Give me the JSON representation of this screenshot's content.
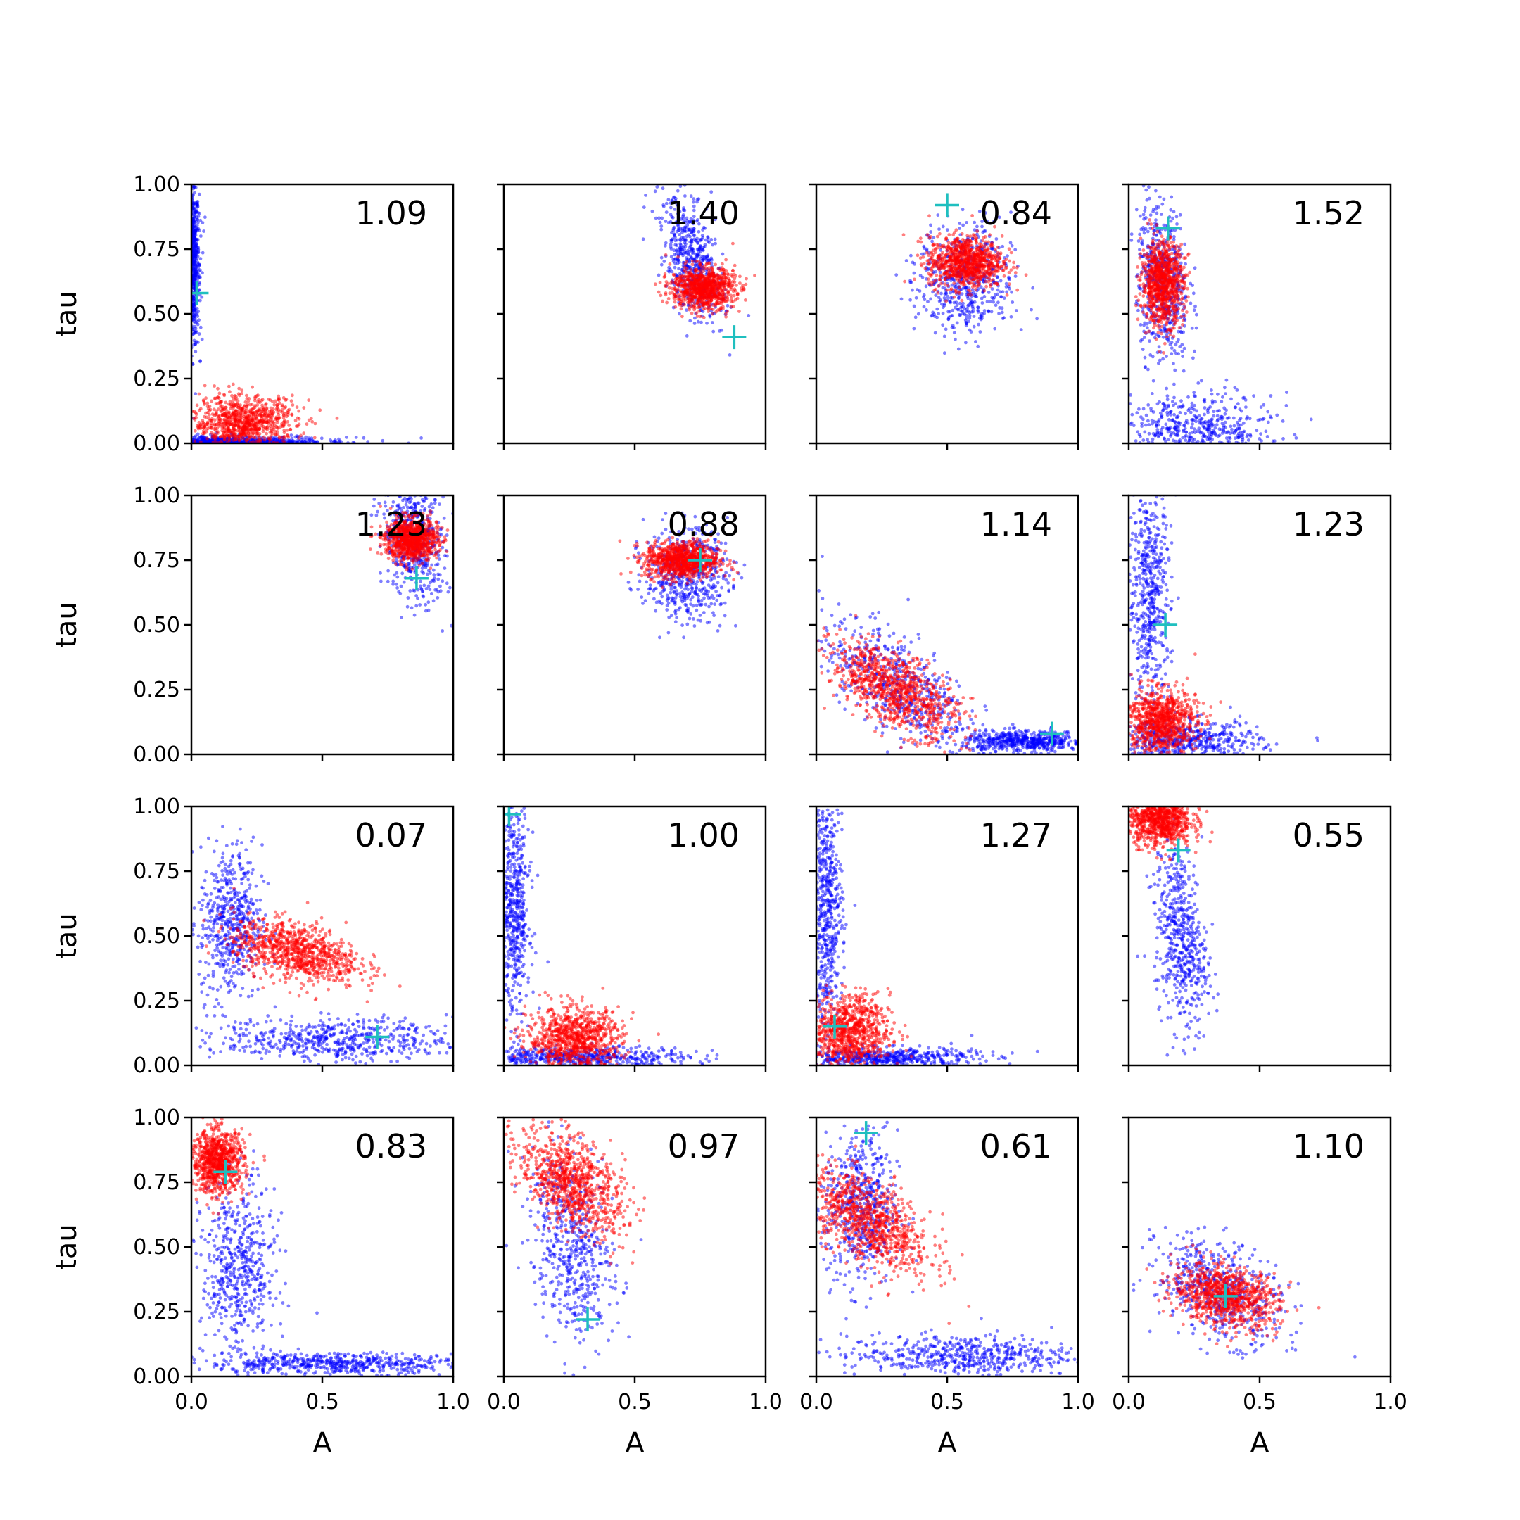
{
  "figure": {
    "rows": 4,
    "cols": 4,
    "background": "#ffffff",
    "colors": {
      "blue_points": "#0000ff",
      "red_points": "#ff0000",
      "marker": "#1fbfbf",
      "axes": "#000000"
    }
  },
  "chart_data": {
    "type": "scatter",
    "layout": "4x4 grid of scatter panels, shared x and y axes",
    "xlabel": "A",
    "ylabel": "tau",
    "xlim": [
      0,
      1
    ],
    "ylim": [
      0,
      1
    ],
    "xticks": [
      "0.0",
      "0.5",
      "1.0"
    ],
    "yticks": [
      "0.00",
      "0.25",
      "0.50",
      "0.75",
      "1.00"
    ],
    "grid": false,
    "series_styles": [
      {
        "key": "blue",
        "color": "#0000ff",
        "marker": "dot"
      },
      {
        "key": "red",
        "color": "#ff0000",
        "marker": "dot"
      },
      {
        "key": "cross",
        "color": "#1fbfbf",
        "marker": "plus"
      }
    ],
    "panels": [
      {
        "row": 1,
        "col": 1,
        "value": "1.09",
        "blue": [
          [
            0.03,
            0.7,
            0.015,
            0.15,
            "gamma"
          ],
          [
            0.18,
            0.02,
            0.22,
            0.012,
            "exp"
          ]
        ],
        "red": [
          [
            0.2,
            0.08,
            0.1,
            0.05,
            0
          ]
        ],
        "marker": [
          0.02,
          0.58
        ]
      },
      {
        "row": 1,
        "col": 2,
        "value": "1.40",
        "blue": [
          [
            0.72,
            0.7,
            0.06,
            0.12,
            -0.5
          ]
        ],
        "red": [
          [
            0.76,
            0.6,
            0.06,
            0.04,
            0
          ]
        ],
        "marker": [
          0.88,
          0.41
        ]
      },
      {
        "row": 1,
        "col": 3,
        "value": "0.84",
        "blue": [
          [
            0.57,
            0.63,
            0.09,
            0.11,
            0
          ]
        ],
        "red": [
          [
            0.57,
            0.7,
            0.07,
            0.05,
            0
          ]
        ],
        "marker": [
          0.5,
          0.92
        ]
      },
      {
        "row": 1,
        "col": 4,
        "value": "1.52",
        "blue": [
          [
            0.13,
            0.62,
            0.05,
            0.16,
            -0.2
          ],
          [
            0.25,
            0.05,
            0.15,
            0.07,
            0
          ]
        ],
        "red": [
          [
            0.13,
            0.62,
            0.04,
            0.08,
            0
          ]
        ],
        "marker": [
          0.15,
          0.83
        ]
      },
      {
        "row": 2,
        "col": 1,
        "value": "1.23",
        "blue": [
          [
            0.85,
            0.82,
            0.06,
            0.12,
            -0.3
          ]
        ],
        "red": [
          [
            0.84,
            0.83,
            0.05,
            0.04,
            0
          ]
        ],
        "marker": [
          0.86,
          0.68
        ]
      },
      {
        "row": 2,
        "col": 2,
        "value": "0.88",
        "blue": [
          [
            0.7,
            0.7,
            0.08,
            0.09,
            0
          ]
        ],
        "red": [
          [
            0.68,
            0.75,
            0.07,
            0.035,
            0
          ]
        ],
        "marker": [
          0.75,
          0.75
        ]
      },
      {
        "row": 2,
        "col": 3,
        "value": "1.14",
        "blue": [
          [
            0.3,
            0.28,
            0.14,
            0.12,
            -0.6
          ],
          [
            0.8,
            0.05,
            0.12,
            0.02,
            0
          ]
        ],
        "red": [
          [
            0.3,
            0.25,
            0.12,
            0.09,
            -0.6
          ]
        ],
        "marker": [
          0.9,
          0.08
        ]
      },
      {
        "row": 2,
        "col": 4,
        "value": "1.23",
        "blue": [
          [
            0.08,
            0.62,
            0.04,
            0.22,
            0
          ],
          [
            0.22,
            0.05,
            0.14,
            0.04,
            0
          ]
        ],
        "red": [
          [
            0.12,
            0.13,
            0.07,
            0.06,
            0
          ]
        ],
        "marker": [
          0.14,
          0.5
        ]
      },
      {
        "row": 3,
        "col": 1,
        "value": "0.07",
        "blue": [
          [
            0.55,
            0.1,
            0.22,
            0.04,
            0
          ],
          [
            0.15,
            0.55,
            0.06,
            0.15,
            0
          ]
        ],
        "red": [
          [
            0.4,
            0.44,
            0.12,
            0.06,
            -0.4
          ]
        ],
        "marker": [
          0.71,
          0.11
        ]
      },
      {
        "row": 3,
        "col": 2,
        "value": "1.00",
        "blue": [
          [
            0.04,
            0.6,
            0.03,
            0.22,
            0
          ],
          [
            0.3,
            0.03,
            0.2,
            0.02,
            0
          ]
        ],
        "red": [
          [
            0.27,
            0.1,
            0.09,
            0.06,
            0
          ]
        ],
        "marker": [
          0.02,
          0.97
        ]
      },
      {
        "row": 3,
        "col": 3,
        "value": "1.27",
        "blue": [
          [
            0.04,
            0.6,
            0.03,
            0.22,
            0
          ],
          [
            0.25,
            0.03,
            0.18,
            0.02,
            0
          ]
        ],
        "red": [
          [
            0.12,
            0.13,
            0.08,
            0.07,
            0
          ]
        ],
        "marker": [
          0.07,
          0.15
        ]
      },
      {
        "row": 3,
        "col": 4,
        "value": "0.55",
        "blue": [
          [
            0.2,
            0.5,
            0.05,
            0.18,
            -0.3
          ]
        ],
        "red": [
          [
            0.12,
            0.95,
            0.06,
            0.05,
            0
          ]
        ],
        "marker": [
          0.19,
          0.83
        ]
      },
      {
        "row": 4,
        "col": 1,
        "value": "0.83",
        "blue": [
          [
            0.18,
            0.4,
            0.07,
            0.17,
            0
          ],
          [
            0.55,
            0.05,
            0.25,
            0.02,
            0
          ]
        ],
        "red": [
          [
            0.1,
            0.83,
            0.05,
            0.06,
            0
          ]
        ],
        "marker": [
          0.13,
          0.79
        ]
      },
      {
        "row": 4,
        "col": 2,
        "value": "0.97",
        "blue": [
          [
            0.26,
            0.5,
            0.08,
            0.18,
            -0.3
          ]
        ],
        "red": [
          [
            0.26,
            0.75,
            0.1,
            0.1,
            -0.5
          ]
        ],
        "marker": [
          0.32,
          0.22
        ]
      },
      {
        "row": 4,
        "col": 3,
        "value": "0.61",
        "blue": [
          [
            0.17,
            0.65,
            0.07,
            0.15,
            0
          ],
          [
            0.55,
            0.08,
            0.22,
            0.04,
            0
          ]
        ],
        "red": [
          [
            0.2,
            0.6,
            0.12,
            0.1,
            -0.6
          ]
        ],
        "marker": [
          0.19,
          0.94
        ]
      },
      {
        "row": 4,
        "col": 4,
        "value": "1.10",
        "blue": [
          [
            0.35,
            0.33,
            0.12,
            0.1,
            -0.4
          ]
        ],
        "red": [
          [
            0.37,
            0.31,
            0.1,
            0.06,
            -0.3
          ]
        ],
        "marker": [
          0.37,
          0.31
        ]
      }
    ]
  }
}
